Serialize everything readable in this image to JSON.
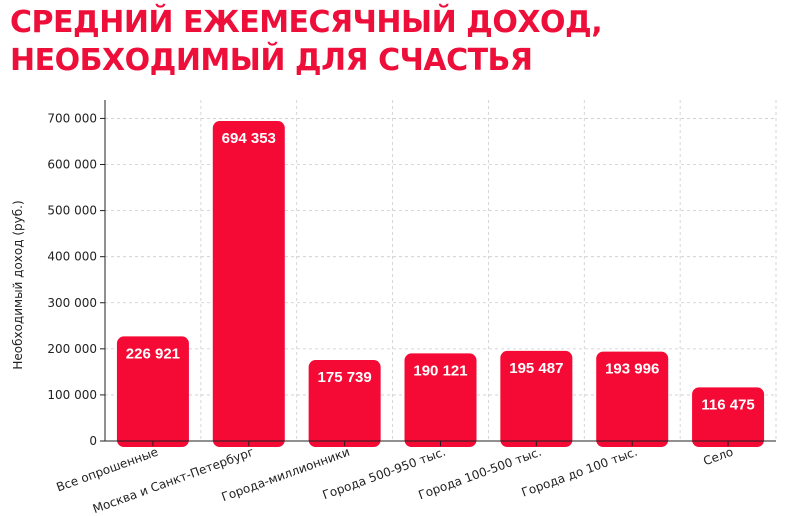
{
  "colors": {
    "accent": "#ee0e3a",
    "bar": "#f40a35",
    "grid": "#cccccc",
    "axis": "#222222",
    "label_text": "#ffffff"
  },
  "chart_data": {
    "type": "bar",
    "title_lines": [
      "СРЕДНИЙ ЕЖЕМЕСЯЧНЫЙ ДОХОД,",
      "НЕОБХОДИМЫЙ ДЛЯ СЧАСТЬЯ"
    ],
    "ylabel": "Необходимый доход (руб.)",
    "xlabel": "",
    "ylim": [
      0,
      740000
    ],
    "yticks": [
      0,
      100000,
      200000,
      300000,
      400000,
      500000,
      600000,
      700000
    ],
    "ytick_labels": [
      "0",
      "100 000",
      "200 000",
      "300 000",
      "400 000",
      "500 000",
      "600 000",
      "700 000"
    ],
    "grid": true,
    "categories": [
      "Все опрошенные",
      "Москва и Санкт-Петербург",
      "Города-миллионники",
      "Города 500-950 тыс.",
      "Города 100-500 тыс.",
      "Города до 100 тыс.",
      "Село"
    ],
    "values": [
      226921,
      694353,
      175739,
      190121,
      195487,
      193996,
      116475
    ],
    "value_labels": [
      "226 921",
      "694 353",
      "175 739",
      "190 121",
      "195 487",
      "193 996",
      "116 475"
    ]
  }
}
